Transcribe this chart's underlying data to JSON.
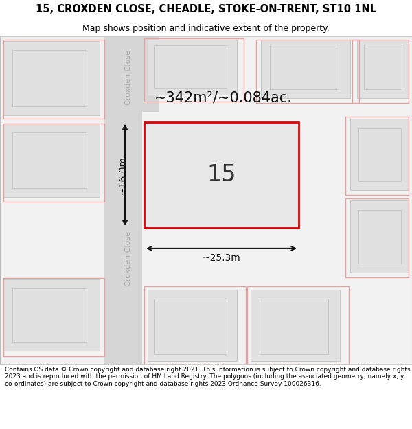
{
  "title": "15, CROXDEN CLOSE, CHEADLE, STOKE-ON-TRENT, ST10 1NL",
  "subtitle": "Map shows position and indicative extent of the property.",
  "footer": "Contains OS data © Crown copyright and database right 2021. This information is subject to Crown copyright and database rights 2023 and is reproduced with the permission of HM Land Registry. The polygons (including the associated geometry, namely x, y co-ordinates) are subject to Crown copyright and database rights 2023 Ordnance Survey 100026316.",
  "area_text": "~342m²/~0.084ac.",
  "width_text": "~25.3m",
  "height_text": "~16.0m",
  "plot_number": "15",
  "road_label_top": "Croxden Close",
  "road_label_left": "Croxden Close",
  "map_bg": "#f2f2f2",
  "road_fill": "#d6d6d6",
  "road_edge": "#bbbbbb",
  "building_fill": "#e0e0e0",
  "building_edge": "#c8c8c8",
  "plot_fill": "#e8e8e8",
  "plot_edge": "#dd0000",
  "pink_outline": "#e8a0a0",
  "title_fontsize": 10.5,
  "subtitle_fontsize": 9,
  "footer_fontsize": 6.5
}
